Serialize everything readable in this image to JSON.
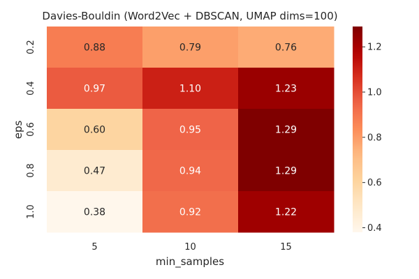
{
  "chart_data": {
    "type": "heatmap",
    "title": "Davies-Bouldin (Word2Vec + DBSCAN, UMAP dims=100)",
    "xlabel": "min_samples",
    "ylabel": "eps",
    "x_categories": [
      "5",
      "10",
      "15"
    ],
    "y_categories": [
      "0.2",
      "0.4",
      "0.6",
      "0.8",
      "1.0"
    ],
    "values": [
      [
        0.88,
        0.79,
        0.76
      ],
      [
        0.97,
        1.1,
        1.23
      ],
      [
        0.6,
        0.95,
        1.29
      ],
      [
        0.47,
        0.94,
        1.29
      ],
      [
        0.38,
        0.92,
        1.22
      ]
    ],
    "value_labels": [
      [
        "0.88",
        "0.79",
        "0.76"
      ],
      [
        "0.97",
        "1.10",
        "1.23"
      ],
      [
        "0.60",
        "0.95",
        "1.29"
      ],
      [
        "0.47",
        "0.94",
        "1.29"
      ],
      [
        "0.38",
        "0.92",
        "1.22"
      ]
    ],
    "colormap": "OrRd-like (light cream to dark red)",
    "colorbar": {
      "range": [
        0.38,
        1.29
      ],
      "ticks": [
        0.4,
        0.6,
        0.8,
        1.0,
        1.2
      ],
      "tick_labels": [
        "0.4",
        "0.6",
        "0.8",
        "1.0",
        "1.2"
      ]
    },
    "grid": false,
    "legend": "colorbar-right"
  }
}
